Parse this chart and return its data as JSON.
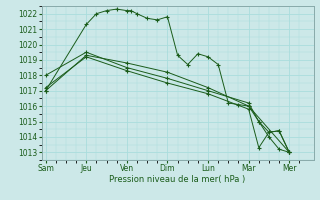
{
  "background_color": "#cce8e8",
  "plot_bg_color": "#cce8e8",
  "grid_color": "#aadddd",
  "line_color": "#1a5c1a",
  "marker_color": "#1a5c1a",
  "xlabel": "Pression niveau de la mer( hPa )",
  "ylim": [
    1012.5,
    1022.5
  ],
  "yticks": [
    1013,
    1014,
    1015,
    1016,
    1017,
    1018,
    1019,
    1020,
    1021,
    1022
  ],
  "xtick_labels": [
    "Sam",
    "Jeu",
    "Ven",
    "Dim",
    "Lun",
    "Mar",
    "Mer"
  ],
  "xtick_positions": [
    0,
    2,
    4,
    6,
    8,
    10,
    12
  ],
  "xlim": [
    -0.2,
    13.2
  ],
  "series": [
    {
      "x": [
        0,
        2,
        2.5,
        3,
        3.5,
        4,
        4.2,
        4.5,
        5.0,
        5.5,
        6.0,
        6.5,
        7.0,
        7.5,
        8.0,
        8.5,
        9.0,
        9.5,
        10.0,
        10.5,
        11.0,
        11.5,
        12.0
      ],
      "y": [
        1017.0,
        1021.3,
        1022.0,
        1022.2,
        1022.3,
        1022.2,
        1022.2,
        1022.0,
        1021.7,
        1021.6,
        1021.8,
        1019.3,
        1018.7,
        1019.4,
        1019.2,
        1018.7,
        1016.2,
        1016.1,
        1016.0,
        1015.0,
        1014.0,
        1013.2,
        1013.0
      ]
    },
    {
      "x": [
        0,
        2,
        4,
        6,
        8,
        10,
        12
      ],
      "y": [
        1017.0,
        1019.3,
        1018.8,
        1018.2,
        1017.2,
        1016.0,
        1013.0
      ]
    },
    {
      "x": [
        0,
        2,
        4,
        6,
        8,
        10,
        10.5,
        11.0,
        11.5,
        12.0
      ],
      "y": [
        1018.0,
        1019.5,
        1018.5,
        1017.8,
        1017.0,
        1016.2,
        1015.0,
        1014.3,
        1014.4,
        1013.0
      ]
    },
    {
      "x": [
        0,
        2,
        4,
        6,
        8,
        10,
        10.5,
        11.0,
        11.5,
        12.0
      ],
      "y": [
        1017.2,
        1019.2,
        1018.3,
        1017.5,
        1016.8,
        1015.8,
        1013.3,
        1014.3,
        1014.4,
        1013.0
      ]
    }
  ]
}
